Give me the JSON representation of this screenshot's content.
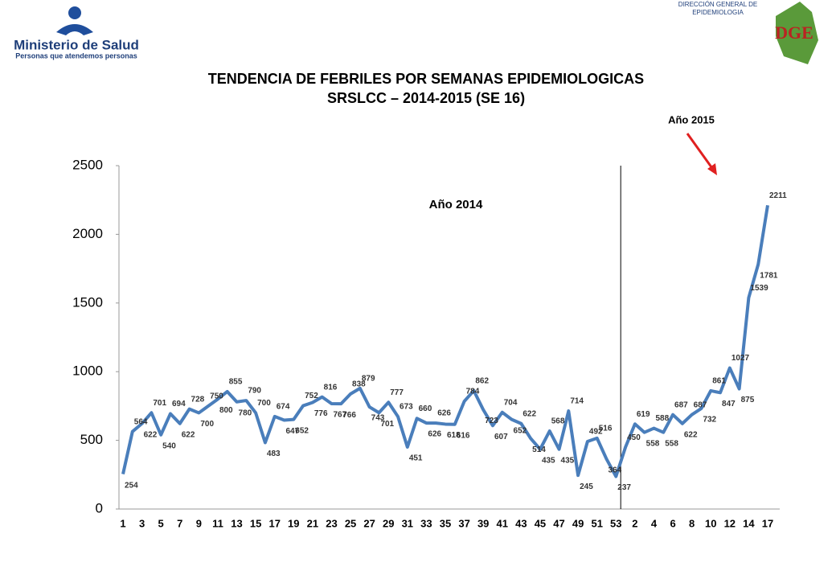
{
  "header": {
    "ministry": "Ministerio de Salud",
    "motto": "Personas que atendemos personas",
    "agency": [
      "DIRECCIÓN GENERAL DE",
      "EPIDEMIOLOGIA"
    ],
    "agency_logo": "DGE"
  },
  "chart_data": {
    "type": "line",
    "title": [
      "TENDENCIA DE FEBRILES POR SEMANAS EPIDEMIOLOGICAS",
      "SRSLCC – 2014-2015 (SE 16)"
    ],
    "annotations": [
      "Año 2014",
      "Año 2015"
    ],
    "categories": [
      "1",
      null,
      "3",
      null,
      "5",
      null,
      "7",
      null,
      "9",
      null,
      "11",
      null,
      "13",
      null,
      "15",
      null,
      "17",
      null,
      "19",
      null,
      "21",
      null,
      "23",
      null,
      "25",
      null,
      "27",
      null,
      "29",
      null,
      "31",
      null,
      "33",
      null,
      "35",
      null,
      "37",
      null,
      "39",
      null,
      "41",
      null,
      "43",
      null,
      "45",
      null,
      "47",
      null,
      "49",
      null,
      "51",
      null,
      "53",
      null,
      "2",
      null,
      "4",
      null,
      "6",
      null,
      "8",
      null,
      "10",
      null,
      "12",
      null,
      "14",
      null,
      "17"
    ],
    "series": [
      {
        "name": "Febriles",
        "color": "#4a7ebb",
        "values": [
          254,
          564,
          622,
          701,
          540,
          694,
          622,
          728,
          700,
          750,
          800,
          855,
          780,
          790,
          700,
          483,
          674,
          647,
          652,
          752,
          776,
          816,
          767,
          766,
          838,
          879,
          743,
          701,
          777,
          673,
          451,
          660,
          626,
          626,
          618,
          616,
          784,
          862,
          723,
          607,
          704,
          652,
          622,
          514,
          435,
          568,
          435,
          714,
          245,
          492,
          516,
          364,
          237,
          450,
          619,
          558,
          588,
          558,
          687,
          622,
          687,
          732,
          861,
          847,
          1027,
          875,
          1539,
          1781,
          2211
        ]
      }
    ],
    "ylim": [
      0,
      2500
    ],
    "yticks": [
      0,
      500,
      1000,
      1500,
      2000,
      2500
    ],
    "grid": false
  }
}
